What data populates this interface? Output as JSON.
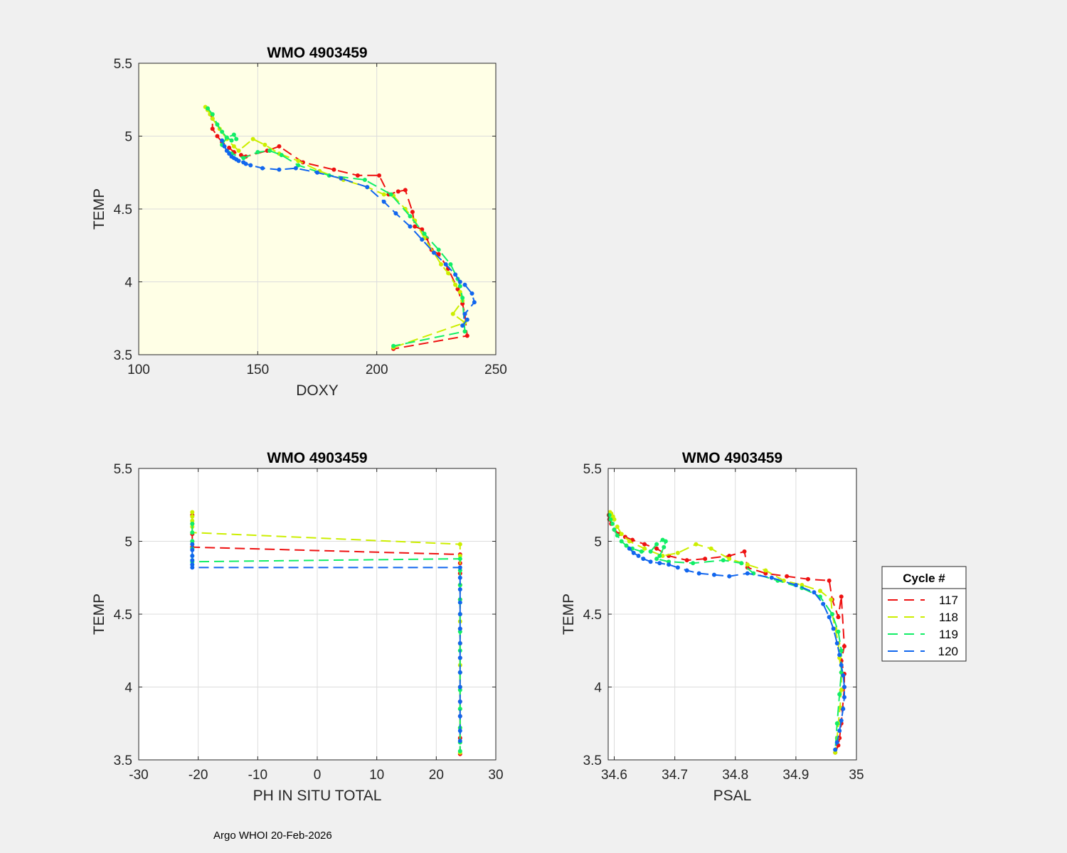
{
  "figure": {
    "background": "#f0f0f0",
    "footer_text": "Argo WHOI 20-Feb-2026"
  },
  "legend": {
    "title": "Cycle #",
    "entries": [
      {
        "label": "117",
        "color": "#ee1111"
      },
      {
        "label": "118",
        "color": "#ccee00"
      },
      {
        "label": "119",
        "color": "#11ee66"
      },
      {
        "label": "120",
        "color": "#1166ee"
      }
    ]
  },
  "chart_data": [
    {
      "type": "line",
      "title": "WMO 4903459",
      "xlabel": "DOXY",
      "ylabel": "TEMP",
      "xlim": [
        100,
        250
      ],
      "ylim": [
        3.5,
        5.5
      ],
      "xticks": [
        100,
        150,
        200,
        250
      ],
      "yticks": [
        3.5,
        4,
        4.5,
        5,
        5.5
      ],
      "xtick_labels": [
        "100",
        "150",
        "200",
        "250"
      ],
      "ytick_labels": [
        "3.5",
        "4",
        "4.5",
        "5",
        "5.5"
      ],
      "grid": true,
      "background": "#ffffe6",
      "series": [
        {
          "name": "117",
          "color": "#ee1111",
          "x": [
            129,
            130,
            131,
            131,
            133,
            135,
            138,
            140,
            143,
            145,
            154,
            159,
            169,
            182,
            192,
            201,
            205,
            209,
            212,
            215,
            216,
            219,
            221,
            223,
            226,
            230,
            234,
            236,
            237,
            238,
            207
          ],
          "y": [
            5.18,
            5.15,
            5.12,
            5.05,
            5.0,
            4.96,
            4.92,
            4.89,
            4.87,
            4.86,
            4.9,
            4.93,
            4.82,
            4.77,
            4.73,
            4.73,
            4.6,
            4.62,
            4.63,
            4.48,
            4.38,
            4.36,
            4.3,
            4.22,
            4.19,
            4.09,
            3.95,
            3.85,
            3.78,
            3.63,
            3.54
          ]
        },
        {
          "name": "118",
          "color": "#ccee00",
          "x": [
            128,
            129,
            130,
            131,
            134,
            137,
            140,
            142,
            148,
            153,
            159,
            167,
            176,
            186,
            196,
            203,
            207,
            212,
            216,
            220,
            224,
            227,
            230,
            233,
            235,
            236,
            232,
            237,
            207
          ],
          "y": [
            5.2,
            5.18,
            5.15,
            5.12,
            5.05,
            4.98,
            4.93,
            4.9,
            4.98,
            4.94,
            4.88,
            4.83,
            4.76,
            4.7,
            4.65,
            4.6,
            4.59,
            4.5,
            4.42,
            4.3,
            4.2,
            4.12,
            4.06,
            3.98,
            3.93,
            3.87,
            3.78,
            3.72,
            3.55
          ]
        },
        {
          "name": "119",
          "color": "#11ee66",
          "x": [
            129,
            131,
            133,
            135,
            137,
            139,
            141,
            140,
            137,
            135,
            139,
            144,
            150,
            155,
            160,
            167,
            180,
            195,
            206,
            214,
            220,
            226,
            231,
            234,
            235,
            236,
            237,
            207
          ],
          "y": [
            5.19,
            5.15,
            5.08,
            5.03,
            4.99,
            4.97,
            4.98,
            5.01,
            4.99,
            4.94,
            4.88,
            4.85,
            4.89,
            4.9,
            4.87,
            4.8,
            4.73,
            4.7,
            4.6,
            4.45,
            4.33,
            4.22,
            4.12,
            4.02,
            3.97,
            3.89,
            3.66,
            3.56
          ]
        },
        {
          "name": "120",
          "color": "#1166ee",
          "x": [
            135,
            136,
            137,
            138,
            139,
            140,
            141,
            142,
            144,
            145,
            147,
            152,
            159,
            166,
            175,
            185,
            196,
            203,
            208,
            214,
            219,
            224,
            229,
            233,
            235,
            237,
            240,
            241,
            237,
            236,
            238
          ],
          "y": [
            4.97,
            4.93,
            4.9,
            4.88,
            4.86,
            4.85,
            4.84,
            4.83,
            4.82,
            4.81,
            4.8,
            4.78,
            4.77,
            4.78,
            4.75,
            4.71,
            4.65,
            4.55,
            4.47,
            4.38,
            4.29,
            4.2,
            4.12,
            4.05,
            4.0,
            3.98,
            3.92,
            3.86,
            3.78,
            3.7,
            3.74
          ]
        }
      ]
    },
    {
      "type": "line",
      "title": "WMO 4903459",
      "xlabel": "PH IN SITU TOTAL",
      "ylabel": "TEMP",
      "xlim": [
        -30,
        30
      ],
      "ylim": [
        3.5,
        5.5
      ],
      "xticks": [
        -30,
        -20,
        -10,
        0,
        10,
        20,
        30
      ],
      "yticks": [
        3.5,
        4,
        4.5,
        5,
        5.5
      ],
      "xtick_labels": [
        "-30",
        "-20",
        "-10",
        "0",
        "10",
        "20",
        "30"
      ],
      "ytick_labels": [
        "3.5",
        "4",
        "4.5",
        "5",
        "5.5"
      ],
      "grid": true,
      "background": "#ffffff",
      "series": [
        {
          "name": "117",
          "color": "#ee1111",
          "x": [
            -21,
            -21,
            -21,
            -21,
            -21,
            24,
            24,
            24,
            24,
            24,
            24,
            24,
            24,
            24,
            24,
            24,
            24,
            24,
            24,
            24
          ],
          "y": [
            5.18,
            5.12,
            5.05,
            5.0,
            4.96,
            4.91,
            4.85,
            4.78,
            4.7,
            4.6,
            4.5,
            4.4,
            4.3,
            4.2,
            4.1,
            4.0,
            3.9,
            3.8,
            3.65,
            3.54
          ]
        },
        {
          "name": "118",
          "color": "#ccee00",
          "x": [
            -21,
            -21,
            -21,
            -21,
            -21,
            24,
            24,
            24,
            24,
            24,
            24,
            24,
            24,
            24,
            24,
            24,
            24,
            24
          ],
          "y": [
            5.2,
            5.17,
            5.14,
            5.1,
            5.06,
            4.98,
            4.9,
            4.8,
            4.7,
            4.6,
            4.45,
            4.3,
            4.15,
            4.0,
            3.85,
            3.72,
            3.62,
            3.55
          ]
        },
        {
          "name": "119",
          "color": "#11ee66",
          "x": [
            -21,
            -21,
            -21,
            -21,
            -21,
            -21,
            24,
            24,
            24,
            24,
            24,
            24,
            24,
            24,
            24,
            24,
            24,
            24,
            24
          ],
          "y": [
            5.12,
            5.06,
            5.0,
            4.95,
            4.9,
            4.86,
            4.88,
            4.8,
            4.7,
            4.6,
            4.5,
            4.38,
            4.25,
            4.1,
            3.98,
            3.85,
            3.72,
            3.62,
            3.56
          ]
        },
        {
          "name": "120",
          "color": "#1166ee",
          "x": [
            -21,
            -21,
            -21,
            -21,
            -21,
            -21,
            24,
            24,
            24,
            24,
            24,
            24,
            24,
            24,
            24,
            24,
            24,
            24,
            24,
            24
          ],
          "y": [
            4.98,
            4.94,
            4.9,
            4.87,
            4.84,
            4.82,
            4.82,
            4.75,
            4.67,
            4.58,
            4.5,
            4.4,
            4.3,
            4.2,
            4.1,
            4.0,
            3.9,
            3.8,
            3.7,
            3.63
          ]
        }
      ]
    },
    {
      "type": "line",
      "title": "WMO 4903459",
      "xlabel": "PSAL",
      "ylabel": "TEMP",
      "xlim": [
        34.59,
        35
      ],
      "ylim": [
        3.5,
        5.5
      ],
      "xticks": [
        34.6,
        34.7,
        34.8,
        34.9,
        35
      ],
      "yticks": [
        3.5,
        4,
        4.5,
        5,
        5.5
      ],
      "xtick_labels": [
        "34.6",
        "34.7",
        "34.8",
        "34.9",
        "35"
      ],
      "ytick_labels": [
        "3.5",
        "4",
        "4.5",
        "5",
        "5.5"
      ],
      "grid": true,
      "background": "#ffffff",
      "series": [
        {
          "name": "117",
          "color": "#ee1111",
          "x": [
            34.591,
            34.592,
            34.595,
            34.6,
            34.608,
            34.618,
            34.63,
            34.65,
            34.67,
            34.69,
            34.72,
            34.75,
            34.79,
            34.815,
            34.82,
            34.85,
            34.885,
            34.92,
            34.955,
            34.96,
            34.97,
            34.975,
            34.98,
            34.975,
            34.98,
            34.98,
            34.977,
            34.975,
            34.972,
            34.97,
            34.965
          ],
          "y": [
            5.18,
            5.15,
            5.12,
            5.08,
            5.05,
            5.03,
            5.01,
            4.98,
            4.95,
            4.9,
            4.87,
            4.88,
            4.9,
            4.93,
            4.82,
            4.78,
            4.76,
            4.74,
            4.73,
            4.6,
            4.48,
            4.62,
            4.28,
            4.18,
            4.09,
            4.0,
            3.85,
            3.75,
            3.65,
            3.6,
            3.55
          ]
        },
        {
          "name": "118",
          "color": "#ccee00",
          "x": [
            34.593,
            34.595,
            34.598,
            34.6,
            34.605,
            34.612,
            34.625,
            34.65,
            34.68,
            34.705,
            34.735,
            34.76,
            34.79,
            34.82,
            34.85,
            34.88,
            34.91,
            34.94,
            34.958,
            34.96,
            34.965,
            34.97,
            34.972,
            34.975,
            34.975,
            34.973,
            34.97,
            34.968,
            34.965
          ],
          "y": [
            5.2,
            5.19,
            5.17,
            5.15,
            5.1,
            5.05,
            5.0,
            4.95,
            4.9,
            4.92,
            4.98,
            4.95,
            4.88,
            4.84,
            4.8,
            4.73,
            4.7,
            4.66,
            4.6,
            4.5,
            4.4,
            4.3,
            4.2,
            4.1,
            3.98,
            3.86,
            3.75,
            3.65,
            3.55
          ]
        },
        {
          "name": "119",
          "color": "#11ee66",
          "x": [
            34.592,
            34.594,
            34.597,
            34.6,
            34.605,
            34.612,
            34.62,
            34.63,
            34.645,
            34.66,
            34.67,
            34.68,
            34.685,
            34.682,
            34.675,
            34.67,
            34.69,
            34.73,
            34.78,
            34.81,
            34.83,
            34.87,
            34.91,
            34.94,
            34.96,
            34.97,
            34.975,
            34.975,
            34.972,
            34.968,
            34.965
          ],
          "y": [
            5.18,
            5.15,
            5.12,
            5.08,
            5.04,
            5.0,
            4.97,
            4.95,
            4.93,
            4.93,
            4.98,
            5.01,
            5.0,
            4.96,
            4.9,
            4.88,
            4.86,
            4.85,
            4.87,
            4.85,
            4.78,
            4.73,
            4.68,
            4.62,
            4.5,
            4.38,
            4.25,
            4.1,
            3.95,
            3.75,
            3.57
          ]
        },
        {
          "name": "120",
          "color": "#1166ee",
          "x": [
            34.625,
            34.632,
            34.64,
            34.648,
            34.66,
            34.675,
            34.69,
            34.705,
            34.72,
            34.74,
            34.765,
            34.79,
            34.82,
            34.86,
            34.9,
            34.93,
            34.945,
            34.955,
            34.962,
            34.968,
            34.972,
            34.975,
            34.978,
            34.98,
            34.98,
            34.978,
            34.975,
            34.972,
            34.968,
            34.965
          ],
          "y": [
            4.95,
            4.92,
            4.9,
            4.88,
            4.86,
            4.85,
            4.84,
            4.82,
            4.8,
            4.78,
            4.77,
            4.76,
            4.78,
            4.75,
            4.7,
            4.65,
            4.57,
            4.48,
            4.4,
            4.3,
            4.22,
            4.15,
            4.08,
            4.0,
            3.93,
            3.85,
            3.77,
            3.7,
            3.62,
            3.57
          ]
        }
      ]
    }
  ]
}
